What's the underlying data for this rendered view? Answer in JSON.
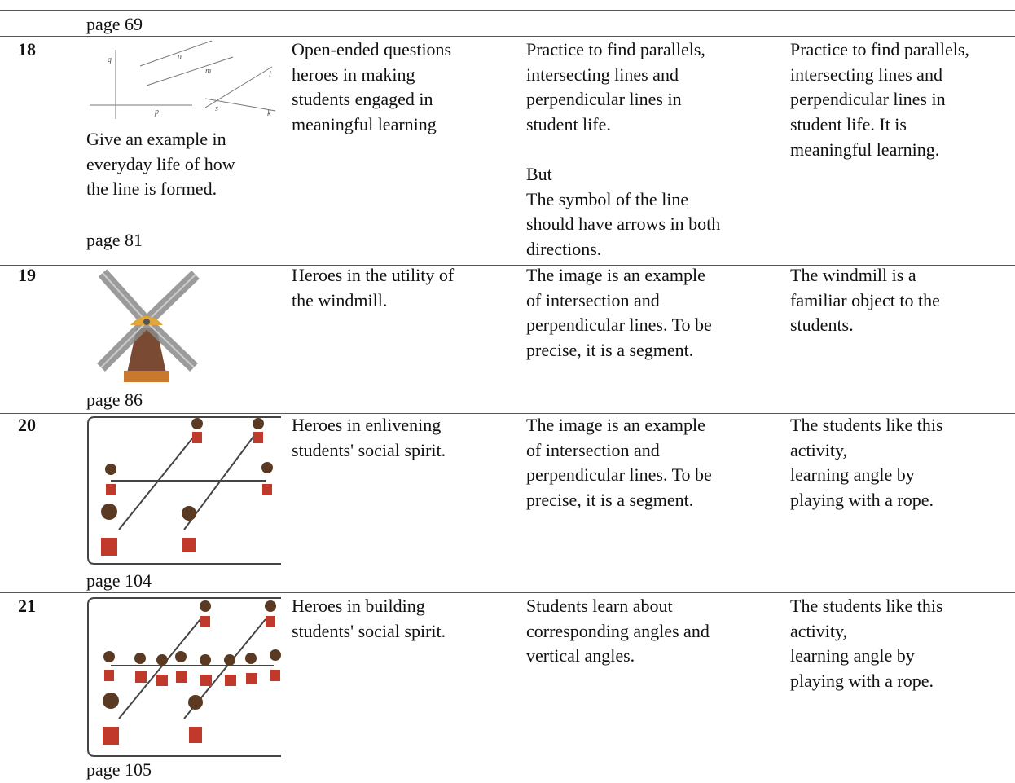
{
  "table": {
    "rows": [
      {
        "page": "page 69"
      },
      {
        "number": "18",
        "figure_labels": [
          "q",
          "n",
          "m",
          "l",
          "p",
          "s",
          "k"
        ],
        "image_text": [
          "Give an example in",
          "everyday life of how",
          "the line is formed."
        ],
        "page": "page 81",
        "col3": [
          "Open-ended questions",
          "heroes in making",
          "students engaged in",
          "meaningful learning"
        ],
        "col4": [
          "Practice to find parallels,",
          "intersecting lines and",
          "perpendicular lines in",
          "student life."
        ],
        "col4_extra": [
          "But",
          "The symbol of the line",
          "should have arrows in both",
          "directions."
        ],
        "col5": [
          "Practice to find parallels,",
          "intersecting lines and",
          "perpendicular lines in",
          "student life. It is",
          "meaningful learning."
        ]
      },
      {
        "number": "19",
        "page": "page 86",
        "col3": [
          "Heroes in the utility of",
          "the windmill."
        ],
        "col4": [
          "The image is an example",
          "of intersection and",
          "perpendicular lines. To be",
          "precise, it is a segment."
        ],
        "col5": [
          "The windmill is a",
          "familiar object to the",
          "students."
        ]
      },
      {
        "number": "20",
        "page": "page 104",
        "col3": [
          "Heroes in enlivening",
          "students' social spirit."
        ],
        "col4": [
          "The image is an example",
          "of intersection and",
          "perpendicular lines. To be",
          "precise, it is a segment."
        ],
        "col5": [
          "The students like this",
          "activity,",
          "learning angle by",
          "playing with a rope."
        ]
      },
      {
        "number": "21",
        "page": "page 105",
        "col3": [
          "Heroes in building",
          "students' social spirit."
        ],
        "col4": [
          "Students learn about",
          "corresponding angles and",
          "vertical angles."
        ],
        "col5": [
          "The students like this",
          "activity,",
          "learning angle by",
          "playing with a rope."
        ]
      }
    ]
  }
}
